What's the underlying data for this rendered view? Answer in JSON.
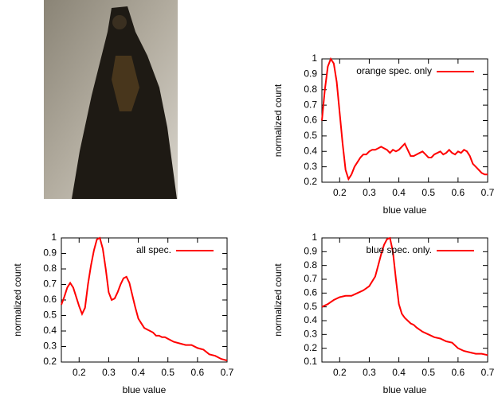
{
  "chart_data": [
    {
      "type": "line",
      "xlabel": "blue value",
      "ylabel": "normalized count",
      "legend": "top-right",
      "grid": false,
      "xlim": [
        0.14,
        0.7
      ],
      "ylim": [
        0.2,
        1
      ],
      "xticks": [
        0.2,
        0.3,
        0.4,
        0.5,
        0.6,
        0.7
      ],
      "yticks": [
        0.2,
        0.3,
        0.4,
        0.5,
        0.6,
        0.7,
        0.8,
        0.9,
        1
      ],
      "x": [
        0.14,
        0.15,
        0.16,
        0.17,
        0.18,
        0.19,
        0.2,
        0.21,
        0.22,
        0.23,
        0.24,
        0.25,
        0.26,
        0.27,
        0.28,
        0.29,
        0.3,
        0.31,
        0.32,
        0.33,
        0.34,
        0.35,
        0.36,
        0.37,
        0.38,
        0.39,
        0.4,
        0.41,
        0.42,
        0.43,
        0.44,
        0.45,
        0.46,
        0.47,
        0.48,
        0.49,
        0.5,
        0.51,
        0.52,
        0.53,
        0.54,
        0.55,
        0.56,
        0.57,
        0.58,
        0.59,
        0.6,
        0.61,
        0.62,
        0.63,
        0.64,
        0.65,
        0.66,
        0.67,
        0.68,
        0.69,
        0.7
      ],
      "series": [
        {
          "name": "orange spec. only",
          "color": "#ff0000",
          "values": [
            0.6,
            0.8,
            0.95,
            1.0,
            0.97,
            0.85,
            0.65,
            0.45,
            0.28,
            0.22,
            0.25,
            0.3,
            0.33,
            0.36,
            0.38,
            0.38,
            0.4,
            0.41,
            0.41,
            0.42,
            0.43,
            0.42,
            0.41,
            0.39,
            0.41,
            0.4,
            0.41,
            0.43,
            0.45,
            0.41,
            0.37,
            0.37,
            0.38,
            0.39,
            0.4,
            0.38,
            0.36,
            0.36,
            0.38,
            0.39,
            0.4,
            0.38,
            0.39,
            0.41,
            0.39,
            0.38,
            0.4,
            0.39,
            0.41,
            0.4,
            0.37,
            0.32,
            0.3,
            0.28,
            0.26,
            0.25,
            0.25
          ]
        }
      ]
    },
    {
      "type": "line",
      "xlabel": "blue value",
      "ylabel": "normalized count",
      "legend": "top-right",
      "grid": false,
      "xlim": [
        0.14,
        0.7
      ],
      "ylim": [
        0.2,
        1
      ],
      "xticks": [
        0.2,
        0.3,
        0.4,
        0.5,
        0.6,
        0.7
      ],
      "yticks": [
        0.2,
        0.3,
        0.4,
        0.5,
        0.6,
        0.7,
        0.8,
        0.9,
        1
      ],
      "x": [
        0.14,
        0.15,
        0.16,
        0.17,
        0.18,
        0.19,
        0.2,
        0.21,
        0.22,
        0.23,
        0.24,
        0.25,
        0.26,
        0.27,
        0.28,
        0.29,
        0.3,
        0.31,
        0.32,
        0.33,
        0.34,
        0.35,
        0.36,
        0.37,
        0.38,
        0.39,
        0.4,
        0.41,
        0.42,
        0.43,
        0.44,
        0.45,
        0.46,
        0.47,
        0.48,
        0.49,
        0.5,
        0.52,
        0.54,
        0.56,
        0.58,
        0.6,
        0.62,
        0.64,
        0.66,
        0.68,
        0.7
      ],
      "series": [
        {
          "name": "all spec.",
          "color": "#ff0000",
          "values": [
            0.57,
            0.62,
            0.68,
            0.71,
            0.68,
            0.62,
            0.56,
            0.51,
            0.55,
            0.7,
            0.82,
            0.92,
            0.99,
            1.0,
            0.93,
            0.8,
            0.65,
            0.6,
            0.61,
            0.65,
            0.7,
            0.74,
            0.75,
            0.71,
            0.63,
            0.55,
            0.48,
            0.45,
            0.42,
            0.41,
            0.4,
            0.39,
            0.37,
            0.37,
            0.36,
            0.36,
            0.35,
            0.33,
            0.32,
            0.31,
            0.31,
            0.29,
            0.28,
            0.25,
            0.24,
            0.22,
            0.21
          ]
        }
      ]
    },
    {
      "type": "line",
      "xlabel": "blue value",
      "ylabel": "normalized count",
      "legend": "top-right",
      "grid": false,
      "xlim": [
        0.14,
        0.7
      ],
      "ylim": [
        0.1,
        1
      ],
      "xticks": [
        0.2,
        0.3,
        0.4,
        0.5,
        0.6,
        0.7
      ],
      "yticks": [
        0.1,
        0.2,
        0.3,
        0.4,
        0.5,
        0.6,
        0.7,
        0.8,
        0.9,
        1
      ],
      "x": [
        0.14,
        0.16,
        0.18,
        0.2,
        0.22,
        0.24,
        0.26,
        0.28,
        0.3,
        0.32,
        0.33,
        0.34,
        0.35,
        0.36,
        0.37,
        0.38,
        0.39,
        0.4,
        0.41,
        0.42,
        0.43,
        0.44,
        0.45,
        0.46,
        0.48,
        0.5,
        0.52,
        0.54,
        0.56,
        0.58,
        0.6,
        0.62,
        0.64,
        0.66,
        0.68,
        0.7
      ],
      "series": [
        {
          "name": "blue spec. only.",
          "color": "#ff0000",
          "values": [
            0.5,
            0.52,
            0.55,
            0.57,
            0.58,
            0.58,
            0.6,
            0.62,
            0.65,
            0.72,
            0.8,
            0.88,
            0.95,
            0.99,
            1.0,
            0.9,
            0.7,
            0.52,
            0.45,
            0.42,
            0.4,
            0.38,
            0.37,
            0.35,
            0.32,
            0.3,
            0.28,
            0.27,
            0.25,
            0.24,
            0.2,
            0.18,
            0.17,
            0.16,
            0.16,
            0.15
          ]
        }
      ]
    }
  ]
}
